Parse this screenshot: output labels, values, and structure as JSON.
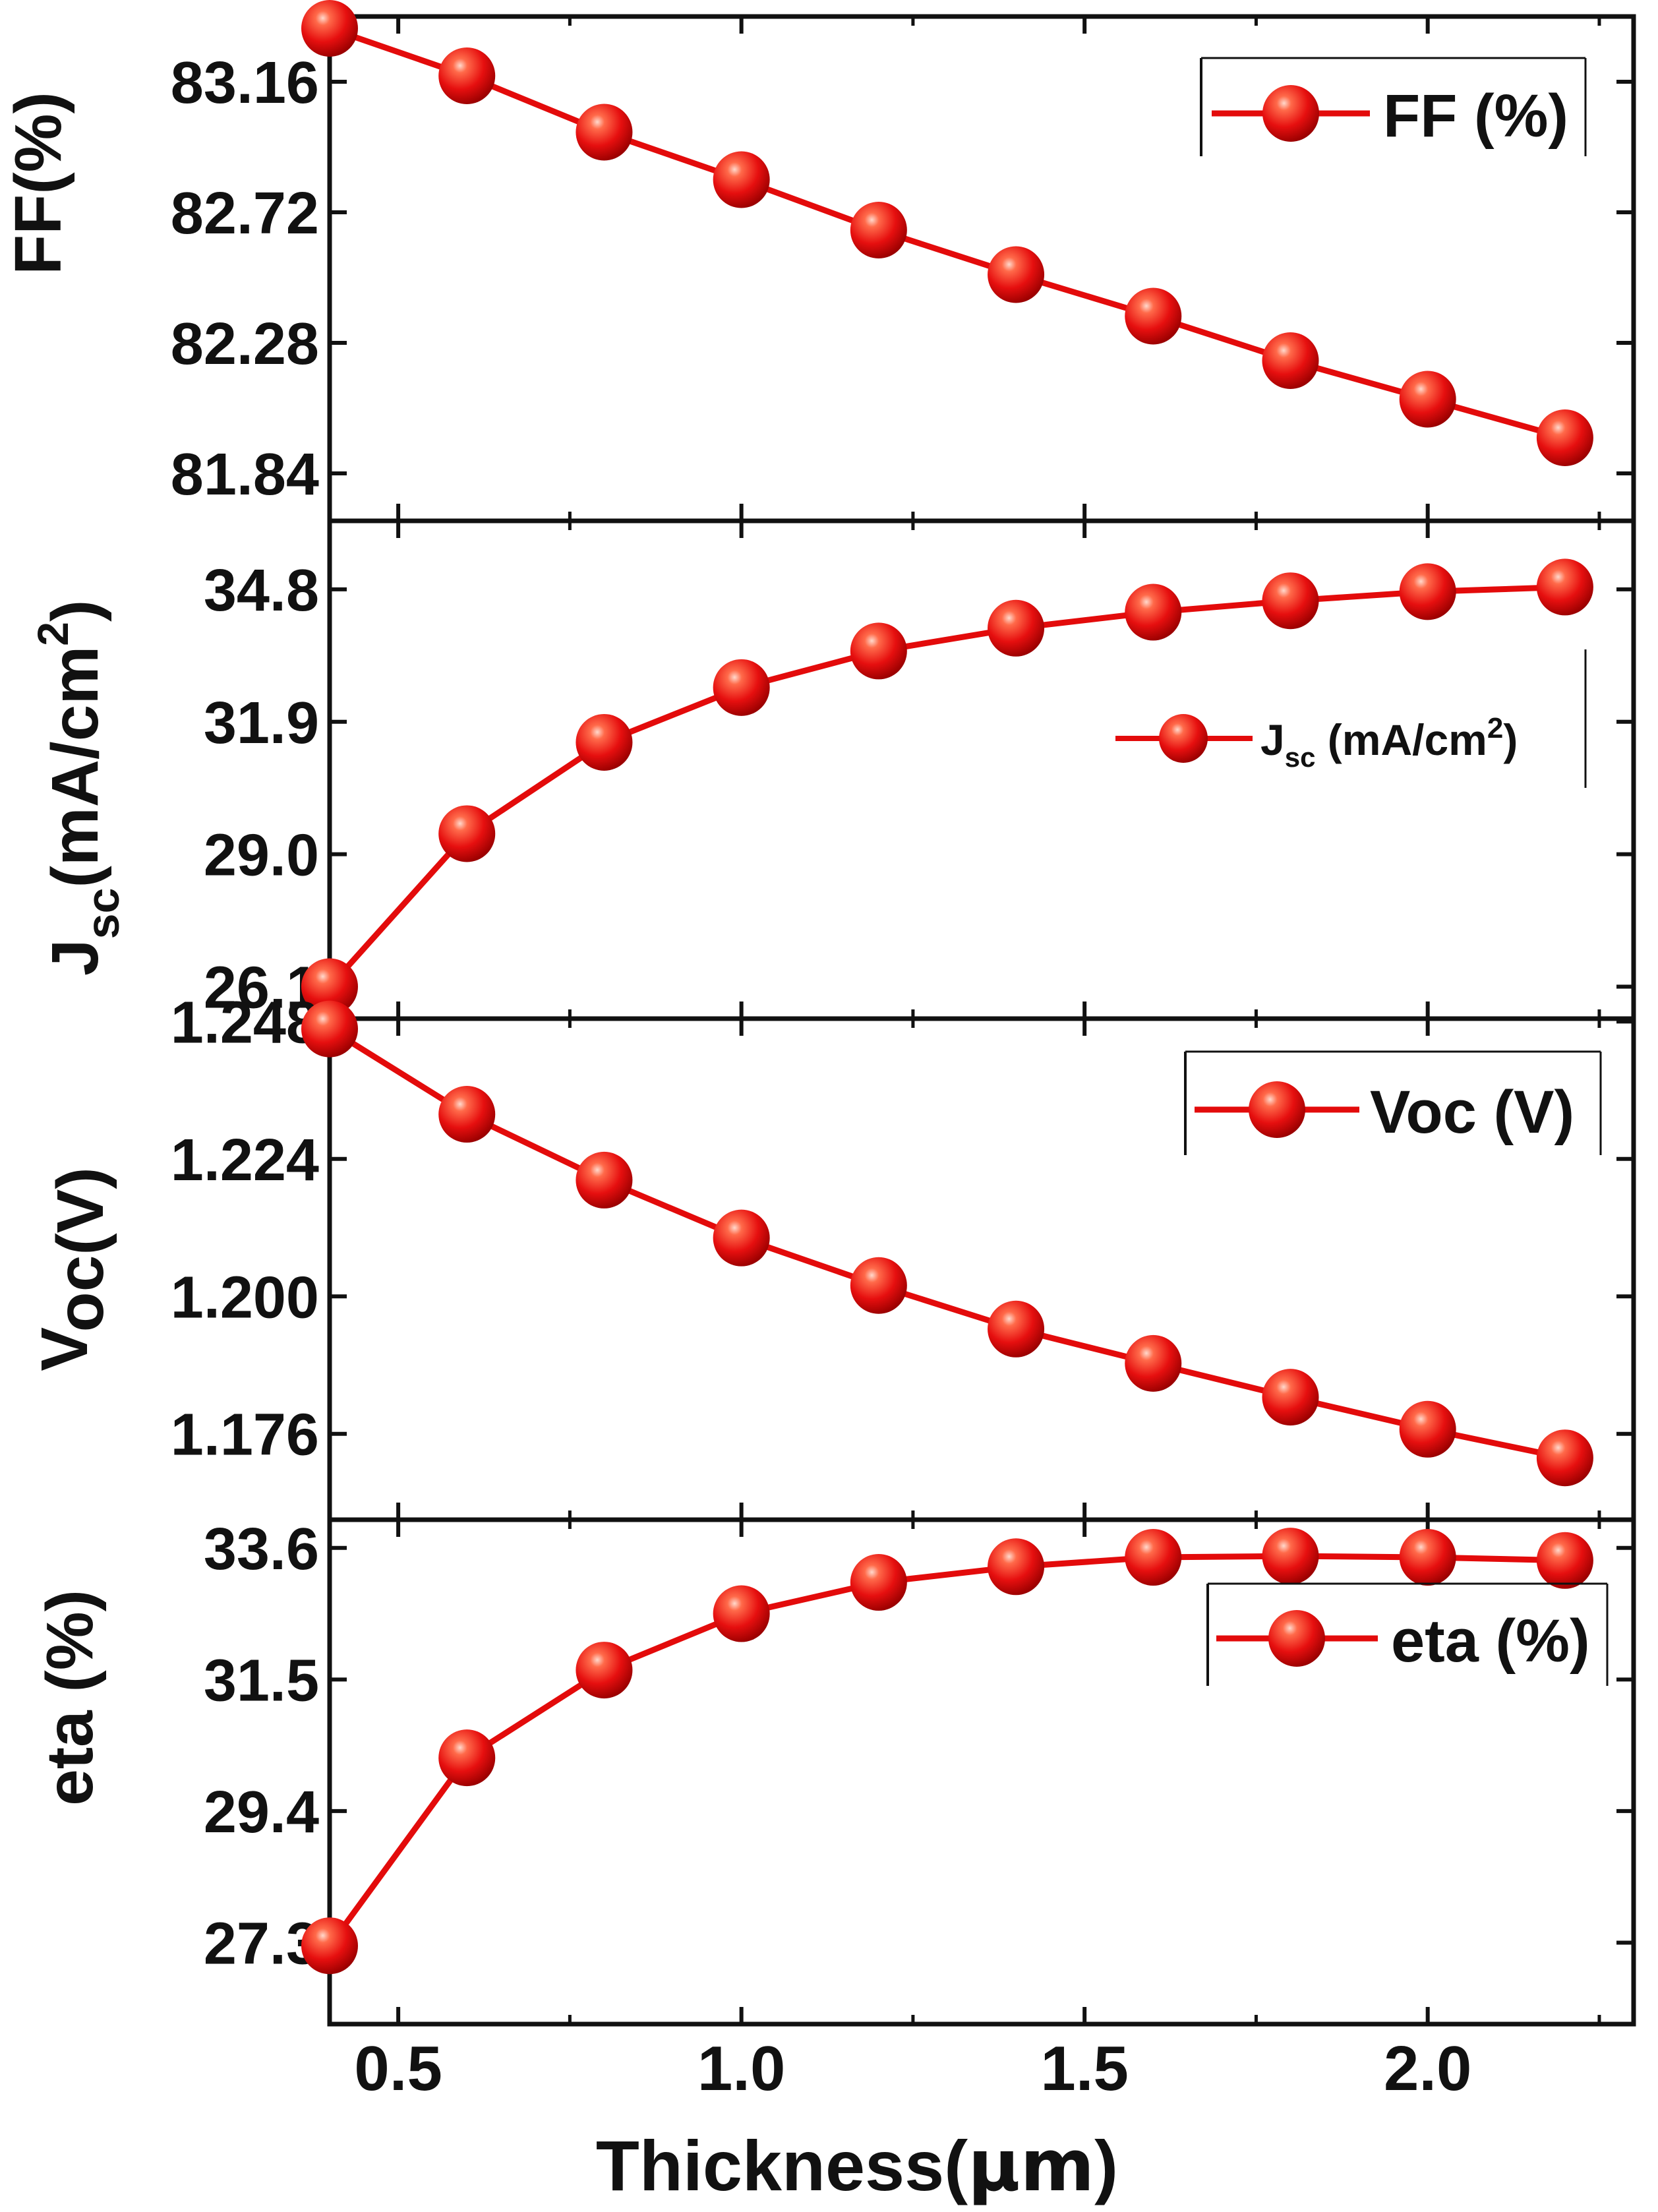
{
  "colors": {
    "series": "#e30b0b",
    "marker_dark": "#b30000",
    "marker_highlight": "#ffc8b8",
    "axis": "#111111",
    "background": "#ffffff"
  },
  "x_axis": {
    "label_main": "Thickness(",
    "label_unit": "μm",
    "label_close": ")",
    "xlim": [
      0.4,
      2.3
    ],
    "ticks": [
      0.5,
      1.0,
      1.5,
      2.0
    ],
    "tick_labels": [
      "0.5",
      "1.0",
      "1.5",
      "2.0"
    ],
    "minor_ticks": [
      0.75,
      1.25,
      1.75,
      2.25
    ]
  },
  "chart_data": [
    {
      "type": "line",
      "panel": "ff",
      "title": "",
      "ylabel": "FF(%)",
      "xlabel": "Thickness(μm)",
      "legend": "FF (%)",
      "legend_position": "top-right",
      "ylim": [
        81.68,
        83.38
      ],
      "yticks": [
        81.84,
        82.28,
        82.72,
        83.16
      ],
      "ytick_labels": [
        "81.84",
        "82.28",
        "82.72",
        "83.16"
      ],
      "x": [
        0.4,
        0.6,
        0.8,
        1.0,
        1.2,
        1.4,
        1.6,
        1.8,
        2.0,
        2.2
      ],
      "values": [
        83.34,
        83.18,
        82.99,
        82.83,
        82.66,
        82.51,
        82.37,
        82.22,
        82.09,
        81.96
      ]
    },
    {
      "type": "line",
      "panel": "jsc",
      "title": "",
      "ylabel": "Jsc(mA/cm2)",
      "ylabel_main": "J",
      "ylabel_sub": "sc",
      "ylabel_rest": "(mA/cm",
      "ylabel_sup": "2",
      "ylabel_close": ")",
      "xlabel": "Thickness(μm)",
      "legend": "Jsc (mA/cm2)",
      "legend_main": "J",
      "legend_sub": "sc",
      "legend_rest": " (mA/cm",
      "legend_sup": "2",
      "legend_close": ")",
      "legend_position": "upper-right",
      "ylim": [
        25.4,
        36.3
      ],
      "yticks": [
        26.1,
        29.0,
        31.9,
        34.8
      ],
      "ytick_labels": [
        "26.1",
        "29.0",
        "31.9",
        "34.8"
      ],
      "x": [
        0.4,
        0.6,
        0.8,
        1.0,
        1.2,
        1.4,
        1.6,
        1.8,
        2.0,
        2.2
      ],
      "values": [
        26.1,
        29.45,
        31.45,
        32.65,
        33.45,
        33.95,
        34.3,
        34.55,
        34.75,
        34.85
      ]
    },
    {
      "type": "line",
      "panel": "voc",
      "title": "",
      "ylabel": "Voc(V)",
      "ylabel_main": "V",
      "ylabel_rest": "oc(V)",
      "xlabel": "Thickness(μm)",
      "legend": "Voc (V)",
      "legend_position": "top-right",
      "ylim": [
        1.161,
        1.2485
      ],
      "yticks": [
        1.176,
        1.2,
        1.224,
        1.248
      ],
      "ytick_labels": [
        "1.176",
        "1.200",
        "1.224",
        "1.248"
      ],
      "x": [
        0.4,
        0.6,
        0.8,
        1.0,
        1.2,
        1.4,
        1.6,
        1.8,
        2.0,
        2.2
      ],
      "values": [
        1.2467,
        1.2318,
        1.2203,
        1.2102,
        1.2019,
        1.1943,
        1.1883,
        1.1824,
        1.1768,
        1.1718
      ]
    },
    {
      "type": "line",
      "panel": "eta",
      "title": "",
      "ylabel": "eta (%)",
      "xlabel": "Thickness(μm)",
      "legend": "eta (%)",
      "legend_position": "top-right",
      "ylim": [
        26.0,
        34.05
      ],
      "yticks": [
        27.3,
        29.4,
        31.5,
        33.6
      ],
      "ytick_labels": [
        "27.3",
        "29.4",
        "31.5",
        "33.6"
      ],
      "x": [
        0.4,
        0.6,
        0.8,
        1.0,
        1.2,
        1.4,
        1.6,
        1.8,
        2.0,
        2.2
      ],
      "values": [
        27.25,
        30.25,
        31.65,
        32.55,
        33.05,
        33.3,
        33.45,
        33.47,
        33.45,
        33.4
      ]
    }
  ]
}
